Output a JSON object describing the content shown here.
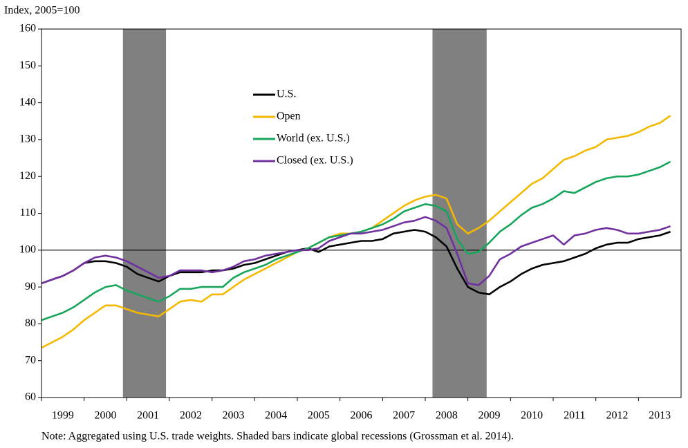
{
  "chart_data": {
    "type": "line",
    "y_axis_label": "Index, 2005=100",
    "note": "Note: Aggregated using U.S. trade weights. Shaded bars indicate global recessions (Grossman et al. 2014).",
    "x": [
      1999,
      1999.25,
      1999.5,
      1999.75,
      2000,
      2000.25,
      2000.5,
      2000.75,
      2001,
      2001.25,
      2001.5,
      2001.75,
      2002,
      2002.25,
      2002.5,
      2002.75,
      2003,
      2003.25,
      2003.5,
      2003.75,
      2004,
      2004.25,
      2004.5,
      2004.75,
      2005,
      2005.25,
      2005.5,
      2005.75,
      2006,
      2006.25,
      2006.5,
      2006.75,
      2007,
      2007.25,
      2007.5,
      2007.75,
      2008,
      2008.25,
      2008.5,
      2008.75,
      2009,
      2009.25,
      2009.5,
      2009.75,
      2010,
      2010.25,
      2010.5,
      2010.75,
      2011,
      2011.25,
      2011.5,
      2011.75,
      2012,
      2012.25,
      2012.5,
      2012.75,
      2013,
      2013.25,
      2013.5,
      2013.75
    ],
    "series": [
      {
        "name": "U.S.",
        "color": "#000000",
        "values": [
          91,
          92,
          93,
          94.5,
          96.5,
          97,
          97,
          96.5,
          95.5,
          93.5,
          92.5,
          91.5,
          93,
          94,
          94,
          94,
          94.5,
          94.5,
          95,
          96,
          96.5,
          97.5,
          98.5,
          99.5,
          100,
          100.5,
          99.5,
          101,
          101.5,
          102,
          102.5,
          102.5,
          103,
          104.5,
          105,
          105.5,
          105,
          103.5,
          101,
          95,
          90,
          88.5,
          88,
          90,
          91.5,
          93.5,
          95,
          96,
          96.5,
          97,
          98,
          99,
          100.5,
          101.5,
          102,
          102,
          103,
          103.5,
          104,
          105
        ]
      },
      {
        "name": "Open",
        "color": "#f5b800",
        "values": [
          73.5,
          75,
          76.5,
          78.5,
          81,
          83,
          85,
          85,
          84,
          83,
          82.5,
          82,
          84,
          86,
          86.5,
          86,
          88,
          88,
          90,
          92,
          93.5,
          95,
          96.5,
          98,
          99.5,
          100.5,
          102,
          103.5,
          104.5,
          104.5,
          105,
          106,
          108,
          110,
          112,
          113.5,
          114.5,
          115,
          114,
          107,
          104.5,
          106,
          108,
          110.5,
          113,
          115.5,
          118,
          119.5,
          122,
          124.5,
          125.5,
          127,
          128,
          130,
          130.5,
          131,
          132,
          133.5,
          134.5,
          136.5
        ]
      },
      {
        "name": "World (ex. U.S.)",
        "color": "#16a55a",
        "values": [
          81,
          82,
          83,
          84.5,
          86.5,
          88.5,
          90,
          90.5,
          89,
          88,
          87,
          86,
          87.5,
          89.5,
          89.5,
          90,
          90,
          90,
          92.5,
          94,
          95,
          96,
          97.5,
          98.5,
          99.5,
          100.5,
          102,
          103.5,
          104,
          104.5,
          105,
          106,
          107,
          108.5,
          110.5,
          111.5,
          112.5,
          112,
          110.5,
          103,
          99,
          99.5,
          102,
          105,
          107,
          109.5,
          111.5,
          112.5,
          114,
          116,
          115.5,
          117,
          118.5,
          119.5,
          120,
          120,
          120.5,
          121.5,
          122.5,
          124
        ]
      },
      {
        "name": "Closed (ex. U.S.)",
        "color": "#7030a0",
        "values": [
          91,
          92,
          93,
          94.5,
          96.5,
          98,
          98.5,
          98,
          97,
          95.5,
          94,
          92.5,
          93,
          94.5,
          94.5,
          94.5,
          94,
          94.5,
          95.5,
          97,
          97.5,
          98.5,
          99,
          99.5,
          100,
          100,
          100.5,
          102.5,
          103.5,
          104.5,
          104.5,
          105,
          105.5,
          106.5,
          107.5,
          108,
          109,
          108,
          106,
          99,
          91,
          90.5,
          93,
          97.5,
          99,
          101,
          102,
          103,
          104,
          101.5,
          104,
          104.5,
          105.5,
          106,
          105.5,
          104.5,
          104.5,
          105,
          105.5,
          106.5
        ]
      }
    ],
    "shaded_ranges": [
      [
        2000.91,
        2001.92
      ],
      [
        2008.17,
        2009.44
      ]
    ],
    "shade_color": "#808080",
    "reference_line": 100,
    "xlim": [
      1999,
      2014
    ],
    "xticks": [
      {
        "value": 1999,
        "label": "1999"
      },
      {
        "value": 2000,
        "label": "2000"
      },
      {
        "value": 2001,
        "label": "2001"
      },
      {
        "value": 2002,
        "label": "2002"
      },
      {
        "value": 2003,
        "label": "2003"
      },
      {
        "value": 2004,
        "label": "2004"
      },
      {
        "value": 2005,
        "label": "2005"
      },
      {
        "value": 2006,
        "label": "2006"
      },
      {
        "value": 2007,
        "label": "2007"
      },
      {
        "value": 2008,
        "label": "2008"
      },
      {
        "value": 2009,
        "label": "2009"
      },
      {
        "value": 2010,
        "label": "2010"
      },
      {
        "value": 2011,
        "label": "2011"
      },
      {
        "value": 2012,
        "label": "2012"
      },
      {
        "value": 2013,
        "label": "2013"
      }
    ],
    "ylim": [
      60,
      160
    ],
    "yticks": [
      60,
      70,
      80,
      90,
      100,
      110,
      120,
      130,
      140,
      150,
      160
    ],
    "grid": false
  }
}
